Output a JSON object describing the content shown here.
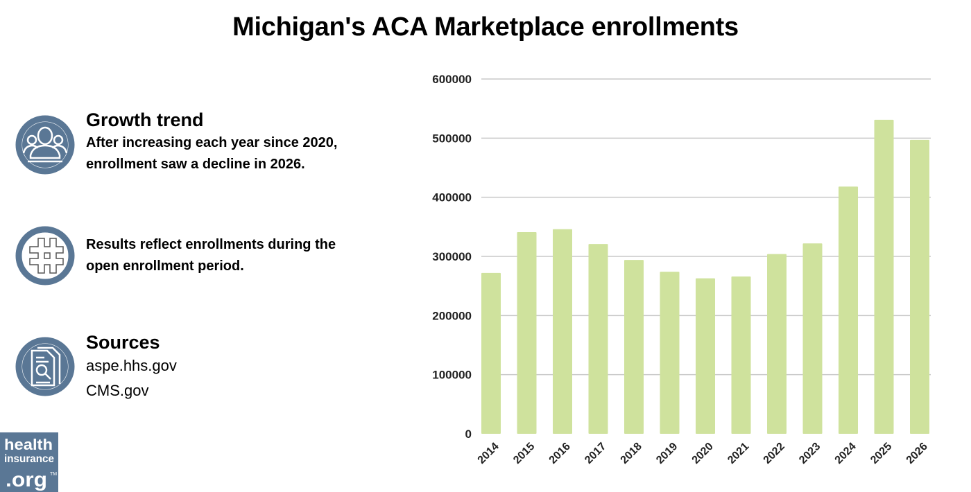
{
  "title": "Michigan's ACA Marketplace enrollments",
  "info": [
    {
      "icon": "people-group-icon",
      "heading": "Growth trend",
      "lines": [
        "After increasing each year since 2020,",
        "enrollment saw a decline in 2026."
      ]
    },
    {
      "icon": "hashtag-icon",
      "lines": [
        "Results reflect enrollments during the",
        "open enrollment period."
      ]
    },
    {
      "icon": "document-search-icon",
      "heading": "Sources",
      "sources": [
        "aspe.hhs.gov",
        "CMS.gov"
      ]
    }
  ],
  "logo": {
    "text": [
      "health",
      "insurance",
      ".org"
    ],
    "mark": "TM"
  },
  "colors": {
    "bar": "#cfe29d",
    "icon": "#5a7795",
    "grid": "#c8c8c8"
  },
  "chart_data": {
    "type": "bar",
    "title": "Michigan's ACA Marketplace enrollments",
    "categories": [
      "2014",
      "2015",
      "2016",
      "2017",
      "2018",
      "2019",
      "2020",
      "2021",
      "2022",
      "2023",
      "2024",
      "2025",
      "2026"
    ],
    "values": [
      272000,
      341000,
      346000,
      321000,
      294000,
      274000,
      263000,
      266000,
      304000,
      322000,
      418000,
      531000,
      497000
    ],
    "ylim": [
      0,
      600000
    ],
    "yticks": [
      "0",
      "100000",
      "200000",
      "300000",
      "400000",
      "500000",
      "600000"
    ],
    "grid": true,
    "xlabel": "",
    "ylabel": ""
  }
}
